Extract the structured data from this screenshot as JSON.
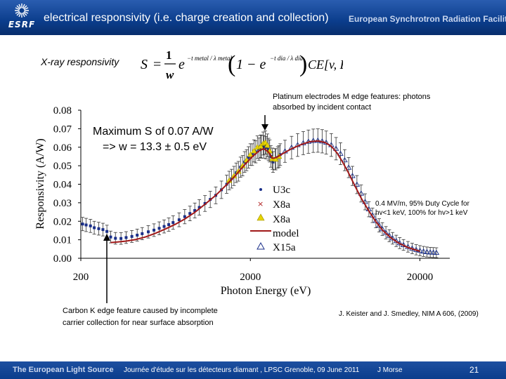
{
  "header": {
    "logo_text": "ESRF",
    "title": "electrical responsivity (i.e. charge creation and collection)",
    "facility": "European Synchrotron Radiation Facility"
  },
  "formula": {
    "label": "X-ray responsivity",
    "S": "S",
    "one": "1",
    "w": "w",
    "e1": "e",
    "exp1": "−t metal / λ metal",
    "paren_open": "(",
    "one_minus": "1 − e",
    "exp2": "−t dia / λ dia",
    "paren_close": ")",
    "ce": "CE[v, F]"
  },
  "annotations": {
    "platinum": "Platinum electrodes M edge features: photons absorbed by incident contact",
    "carbon": "Carbon K edge feature caused by incomplete carrier collection for near surface absorption",
    "reference": "J. Keister and J. Smedley, NIM A 606, (2009)"
  },
  "footer": {
    "left": "The European Light Source",
    "conference": "Journée d'étude sur les détecteurs diamant , LPSC Grenoble, 09 June 2011",
    "author": "J Morse",
    "page": "21"
  },
  "colors": {
    "header": "#0b3d8c",
    "u3c": "#1a2f8a",
    "x8a_cross": "#b02020",
    "x8a_tri": "#e6d400",
    "model": "#a01818",
    "x15a": "#1a2f8a"
  },
  "chart_data": {
    "type": "scatter",
    "x_scale": "log",
    "xlabel": "Photon Energy (eV)",
    "ylabel": "Responsivity (A/W)",
    "xlim": [
      200,
      30000
    ],
    "ylim": [
      0,
      0.08
    ],
    "x_ticks": [
      200,
      2000,
      20000
    ],
    "x_tick_labels": [
      "200",
      "2000",
      "20000"
    ],
    "y_ticks": [
      0,
      0.01,
      0.02,
      0.03,
      0.04,
      0.05,
      0.06,
      0.07,
      0.08
    ],
    "y_tick_labels": [
      "0.00",
      "0.01",
      "0.02",
      "0.03",
      "0.04",
      "0.05",
      "0.06",
      "0.07",
      "0.08"
    ],
    "max_text_line1": "Maximum S of 0.07 A/W",
    "max_text_line2": "=> w = 13.3 ± 0.5 eV",
    "condition_line1": "0.4 MV/m, 95% Duty Cycle for",
    "condition_line2": "hv<1 keV, 100% for hv>1 keV",
    "legend": [
      "U3c",
      "X8a",
      "X8a",
      "model",
      "X15a"
    ],
    "series": [
      {
        "name": "U3c",
        "marker": "dot",
        "points": [
          [
            205,
            0.0185
          ],
          [
            215,
            0.018
          ],
          [
            228,
            0.0175
          ],
          [
            240,
            0.0165
          ],
          [
            255,
            0.016
          ],
          [
            270,
            0.0155
          ],
          [
            285,
            0.0145
          ],
          [
            300,
            0.0115
          ],
          [
            320,
            0.0108
          ],
          [
            345,
            0.0107
          ],
          [
            370,
            0.0112
          ],
          [
            400,
            0.0118
          ],
          [
            430,
            0.0125
          ],
          [
            460,
            0.0133
          ],
          [
            500,
            0.0143
          ],
          [
            540,
            0.0152
          ],
          [
            580,
            0.0162
          ],
          [
            620,
            0.0172
          ],
          [
            660,
            0.0182
          ],
          [
            700,
            0.0193
          ],
          [
            760,
            0.0208
          ],
          [
            820,
            0.0225
          ],
          [
            880,
            0.0242
          ],
          [
            940,
            0.0258
          ],
          [
            1000,
            0.0275
          ],
          [
            1080,
            0.0296
          ],
          [
            1160,
            0.0318
          ],
          [
            1250,
            0.034
          ],
          [
            1350,
            0.037
          ],
          [
            1450,
            0.04
          ],
          [
            1550,
            0.043
          ],
          [
            1650,
            0.0462
          ],
          [
            1750,
            0.0492
          ],
          [
            1850,
            0.052
          ],
          [
            1950,
            0.0545
          ],
          [
            2050,
            0.056
          ],
          [
            2150,
            0.0575
          ],
          [
            2250,
            0.059
          ],
          [
            2320,
            0.0602
          ],
          [
            2400,
            0.0602
          ],
          [
            2480,
            0.0598
          ],
          [
            2560,
            0.0588
          ],
          [
            2640,
            0.055
          ],
          [
            2720,
            0.052
          ],
          [
            2800,
            0.0535
          ],
          [
            2900,
            0.0545
          ],
          [
            3000,
            0.056
          ]
        ]
      },
      {
        "name": "X8a",
        "marker": "tri-yellow",
        "points": [
          [
            1500,
            0.042
          ],
          [
            1600,
            0.0445
          ],
          [
            1700,
            0.047
          ],
          [
            1800,
            0.05
          ],
          [
            1900,
            0.053
          ],
          [
            2000,
            0.056
          ],
          [
            2100,
            0.058
          ],
          [
            2200,
            0.06
          ],
          [
            2300,
            0.0605
          ],
          [
            2380,
            0.062
          ],
          [
            2450,
            0.0625
          ],
          [
            2520,
            0.061
          ],
          [
            2600,
            0.058
          ],
          [
            2700,
            0.0538
          ],
          [
            2820,
            0.0535
          ],
          [
            2950,
            0.055
          ]
        ]
      },
      {
        "name": "X15a",
        "marker": "tri-open",
        "points": [
          [
            3200,
            0.0578
          ],
          [
            3500,
            0.0598
          ],
          [
            3800,
            0.0612
          ],
          [
            4100,
            0.0622
          ],
          [
            4400,
            0.063
          ],
          [
            4700,
            0.0635
          ],
          [
            5000,
            0.0636
          ],
          [
            5300,
            0.0632
          ],
          [
            5600,
            0.0625
          ],
          [
            6000,
            0.0612
          ],
          [
            6400,
            0.0592
          ],
          [
            6800,
            0.0565
          ],
          [
            7200,
            0.053
          ],
          [
            7600,
            0.049
          ],
          [
            8000,
            0.0445
          ],
          [
            8500,
            0.0398
          ],
          [
            9000,
            0.035
          ],
          [
            9500,
            0.0305
          ],
          [
            10000,
            0.0265
          ],
          [
            10500,
            0.0232
          ],
          [
            11000,
            0.0202
          ],
          [
            11500,
            0.0178
          ],
          [
            12000,
            0.0158
          ],
          [
            12600,
            0.0138
          ],
          [
            13200,
            0.0122
          ],
          [
            13800,
            0.0108
          ],
          [
            14500,
            0.0094
          ],
          [
            15200,
            0.0082
          ],
          [
            16000,
            0.0072
          ],
          [
            17000,
            0.0062
          ],
          [
            18000,
            0.0053
          ],
          [
            19000,
            0.0046
          ],
          [
            20000,
            0.0041
          ],
          [
            21000,
            0.0037
          ],
          [
            22000,
            0.0034
          ],
          [
            23000,
            0.0032
          ],
          [
            24000,
            0.0031
          ],
          [
            25000,
            0.003
          ]
        ]
      },
      {
        "name": "model",
        "marker": "line",
        "points": [
          [
            300,
            0.0085
          ],
          [
            330,
            0.0088
          ],
          [
            370,
            0.0093
          ],
          [
            420,
            0.0101
          ],
          [
            480,
            0.0115
          ],
          [
            550,
            0.0135
          ],
          [
            630,
            0.0158
          ],
          [
            720,
            0.0183
          ],
          [
            820,
            0.0212
          ],
          [
            940,
            0.0248
          ],
          [
            1080,
            0.0292
          ],
          [
            1250,
            0.034
          ],
          [
            1450,
            0.0398
          ],
          [
            1650,
            0.0452
          ],
          [
            1850,
            0.0505
          ],
          [
            2050,
            0.0548
          ],
          [
            2250,
            0.058
          ],
          [
            2400,
            0.0592
          ],
          [
            2550,
            0.0575
          ],
          [
            2700,
            0.054
          ],
          [
            2850,
            0.0545
          ],
          [
            3100,
            0.0565
          ],
          [
            3500,
            0.0592
          ],
          [
            4000,
            0.0615
          ],
          [
            4500,
            0.063
          ],
          [
            5000,
            0.0634
          ],
          [
            5500,
            0.0626
          ],
          [
            6000,
            0.0605
          ],
          [
            6500,
            0.0568
          ],
          [
            7000,
            0.052
          ],
          [
            7600,
            0.046
          ],
          [
            8200,
            0.0398
          ],
          [
            9000,
            0.0325
          ],
          [
            10000,
            0.0255
          ],
          [
            11000,
            0.0198
          ],
          [
            12000,
            0.0153
          ],
          [
            13500,
            0.011
          ],
          [
            15000,
            0.0082
          ],
          [
            17000,
            0.0058
          ],
          [
            20000,
            0.0038
          ]
        ]
      }
    ]
  }
}
